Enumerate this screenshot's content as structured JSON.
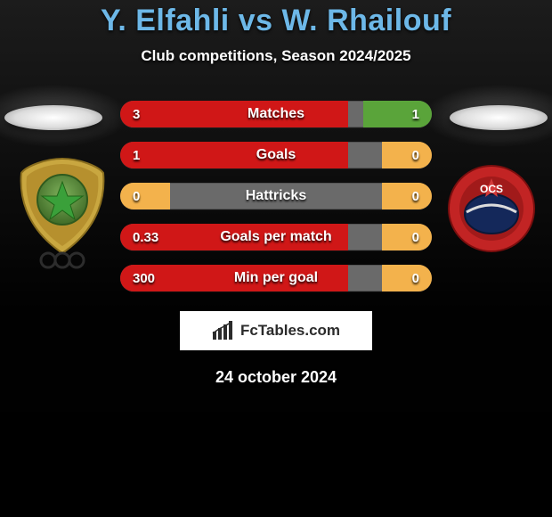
{
  "title": "Y. Elfahli vs W. Rhailouf",
  "subtitle": "Club competitions, Season 2024/2025",
  "date": "24 october 2024",
  "branding_text": "FcTables.com",
  "colors": {
    "title": "#6db8e8",
    "text": "#ffffff",
    "bar_bg": "#6a6a6a",
    "seg_no_value": "#f3b24c",
    "brand_bg": "#ffffff",
    "brand_text": "#2b2b2b",
    "page_bg": "#0a0a0a"
  },
  "team_left": {
    "primary": "#5a8a3e",
    "accent": "#d4b23a",
    "star": "#3aa03a",
    "rings": "#3c3c3c"
  },
  "team_right": {
    "primary": "#c22424",
    "inner": "#14285a",
    "text": "#ffffff"
  },
  "stats": [
    {
      "label": "Matches",
      "left_val": "3",
      "right_val": "1",
      "left_pct": 73,
      "right_pct": 22,
      "left_color": "#d01717",
      "right_color": "#5aa43a"
    },
    {
      "label": "Goals",
      "left_val": "1",
      "right_val": "0",
      "left_pct": 73,
      "right_pct": 16,
      "left_color": "#d01717",
      "right_color": "#f3b24c"
    },
    {
      "label": "Hattricks",
      "left_val": "0",
      "right_val": "0",
      "left_pct": 16,
      "right_pct": 16,
      "left_color": "#f3b24c",
      "right_color": "#f3b24c"
    },
    {
      "label": "Goals per match",
      "left_val": "0.33",
      "right_val": "0",
      "left_pct": 73,
      "right_pct": 16,
      "left_color": "#d01717",
      "right_color": "#f3b24c"
    },
    {
      "label": "Min per goal",
      "left_val": "300",
      "right_val": "0",
      "left_pct": 73,
      "right_pct": 16,
      "left_color": "#d01717",
      "right_color": "#f3b24c"
    }
  ]
}
